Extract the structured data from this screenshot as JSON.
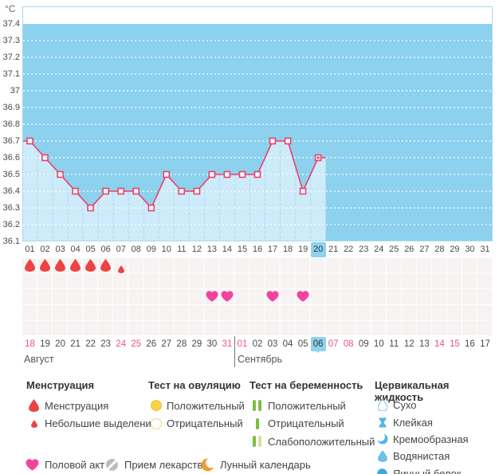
{
  "unit_label": "°C",
  "colors": {
    "sky": "#8CD1ED",
    "area_fill": "#CDEBF9",
    "column_separator": "#A8DCF3",
    "plot_border": "#A9D7EC",
    "grid_dots": "#FFFFFF",
    "line": "#EC3F6B",
    "marker_fill": "#FFFFFF",
    "day_highlight": "#8ED2F0",
    "weekend_date": "#EF5380",
    "menstruation_red": "#EE4243",
    "heart_pink": "#F2439F",
    "ovulation_yellow": "#F6D34A",
    "ovulation_yellow_border": "#E9C83E",
    "ovulation_outline": "#F0D77F",
    "pregnancy_green": "#7CBF3F",
    "pregnancy_green_pale": "#CFE3A0",
    "cervical_blue": "#55B5E4",
    "cervical_blue_light": "#6DC0E8",
    "cervical_blue_outline": "#8FCDED",
    "cervical_blue_deep": "#3FA8DE",
    "moon_orange": "#F49B2C",
    "pill_gray": "#B9BDBF"
  },
  "chart_data": {
    "type": "line",
    "ylabel": "°C",
    "ylim": [
      36.1,
      37.4
    ],
    "ytick_step": 0.1,
    "yticks": [
      37.4,
      37.3,
      37.2,
      37.1,
      37.0,
      36.9,
      36.8,
      36.7,
      36.6,
      36.5,
      36.4,
      36.3,
      36.2,
      36.1
    ],
    "x_range": [
      1,
      31
    ],
    "x": [
      1,
      2,
      3,
      4,
      5,
      6,
      7,
      8,
      9,
      10,
      11,
      12,
      13,
      14,
      15,
      16,
      17,
      18,
      19,
      20
    ],
    "values": [
      36.7,
      36.6,
      36.5,
      36.4,
      36.3,
      36.4,
      36.4,
      36.4,
      36.3,
      36.5,
      36.4,
      36.4,
      36.5,
      36.5,
      36.5,
      36.5,
      36.7,
      36.7,
      36.4,
      36.6
    ],
    "selected_day": 20,
    "day_labels": [
      "01",
      "02",
      "03",
      "04",
      "05",
      "06",
      "07",
      "08",
      "09",
      "10",
      "11",
      "12",
      "13",
      "14",
      "15",
      "16",
      "17",
      "18",
      "19",
      "20",
      "21",
      "22",
      "23",
      "24",
      "25",
      "26",
      "27",
      "28",
      "29",
      "30",
      "31"
    ],
    "grid": "dotted-horizontal",
    "legend_position": "bottom"
  },
  "events": {
    "menstruation": [
      {
        "day": 1,
        "size": "large"
      },
      {
        "day": 2,
        "size": "large"
      },
      {
        "day": 3,
        "size": "large"
      },
      {
        "day": 4,
        "size": "large"
      },
      {
        "day": 5,
        "size": "large"
      },
      {
        "day": 6,
        "size": "large"
      },
      {
        "day": 7,
        "size": "small"
      }
    ],
    "intercourse_days": [
      13,
      14,
      17,
      19
    ]
  },
  "calendar": {
    "month_left": "Август",
    "month_right": "Сентябрь",
    "month_boundary_after_index": 13,
    "current_index": 19,
    "dates": [
      {
        "label": "18",
        "weekend": true
      },
      {
        "label": "19"
      },
      {
        "label": "20"
      },
      {
        "label": "21"
      },
      {
        "label": "22"
      },
      {
        "label": "23"
      },
      {
        "label": "24",
        "weekend": true
      },
      {
        "label": "25",
        "weekend": true
      },
      {
        "label": "26"
      },
      {
        "label": "27"
      },
      {
        "label": "28"
      },
      {
        "label": "29"
      },
      {
        "label": "30"
      },
      {
        "label": "31",
        "weekend": true
      },
      {
        "label": "01",
        "weekend": true
      },
      {
        "label": "02"
      },
      {
        "label": "03"
      },
      {
        "label": "04"
      },
      {
        "label": "05"
      },
      {
        "label": "06",
        "current": true
      },
      {
        "label": "07",
        "weekend": true
      },
      {
        "label": "08",
        "weekend": true
      },
      {
        "label": "09"
      },
      {
        "label": "10"
      },
      {
        "label": "11"
      },
      {
        "label": "12"
      },
      {
        "label": "13"
      },
      {
        "label": "14",
        "weekend": true
      },
      {
        "label": "15",
        "weekend": true
      },
      {
        "label": "16"
      },
      {
        "label": "17"
      }
    ]
  },
  "legend": {
    "columns": [
      {
        "title": "Менструация",
        "items": [
          {
            "icon": "drop-large-red-icon",
            "label": "Менструация"
          },
          {
            "icon": "drop-small-red-icon",
            "label": "Небольшие выделения"
          }
        ]
      },
      {
        "title": "Тест на овуляцию",
        "items": [
          {
            "icon": "circle-yellow-filled-icon",
            "label": "Положительный"
          },
          {
            "icon": "circle-yellow-outline-icon",
            "label": "Отрицательный"
          }
        ]
      },
      {
        "title": "Тест на беременность",
        "items": [
          {
            "icon": "two-green-bars-icon",
            "label": "Положительный"
          },
          {
            "icon": "one-green-bar-icon",
            "label": "Отрицательный"
          },
          {
            "icon": "green-pale-bars-icon",
            "label": "Слабоположительный"
          }
        ]
      },
      {
        "title": "Цервикальная жидкость",
        "items": [
          {
            "icon": "drop-outline-icon",
            "label": "Сухо"
          },
          {
            "icon": "sticky-hourglass-icon",
            "label": "Клейкая"
          },
          {
            "icon": "creamy-crescent-icon",
            "label": "Кремообразная"
          },
          {
            "icon": "watery-drop-icon",
            "label": "Водянистая"
          },
          {
            "icon": "eggwhite-circle-icon",
            "label": "Яичный белок"
          }
        ]
      }
    ],
    "bottom_items": [
      {
        "icon": "heart-icon",
        "label": "Половой акт"
      },
      {
        "icon": "pill-icon",
        "label": "Прием лекарств"
      },
      {
        "icon": "moon-icon",
        "label": "Лунный календарь"
      }
    ]
  }
}
